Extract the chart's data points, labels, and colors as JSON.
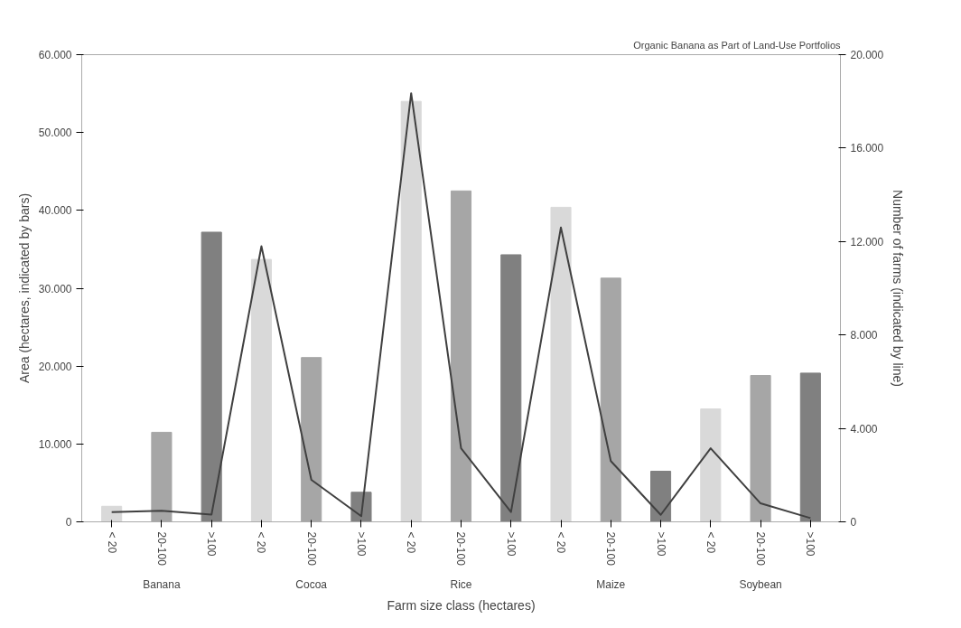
{
  "chart_data": {
    "type": "bar",
    "title": "Organic Banana as Part of Land-Use Portfolios",
    "xlabel": "Farm size class (hectares)",
    "ylabel": "Area (hectares, indicated by bars)",
    "y2label": "Number of farms (indicated by line)",
    "categories": [
      "< 20",
      "20-100",
      ">100",
      "< 20",
      "20-100",
      ">100",
      "< 20",
      "20-100",
      ">100",
      "< 20",
      "20-100",
      ">100",
      "< 20",
      "20-100",
      ">100"
    ],
    "annotations": [
      "Banana",
      "Cocoa",
      "Rice",
      "Maize",
      "Soybean"
    ],
    "series": [
      {
        "colors": [
          "#d9d9d9",
          "#a6a6a6",
          "#808080",
          "#d9d9d9",
          "#a6a6a6",
          "#808080",
          "#d9d9d9",
          "#a6a6a6",
          "#808080",
          "#d9d9d9",
          "#a6a6a6",
          "#808080",
          "#d9d9d9",
          "#a6a6a6",
          "#808080"
        ],
        "values": [
          2000,
          11500,
          37200,
          33700,
          21100,
          3800,
          54000,
          42500,
          34300,
          40400,
          31300,
          6500,
          14500,
          18800,
          19100
        ]
      },
      {
        "type": "line",
        "axis": "y2",
        "color": "#404040",
        "values": [
          420,
          470,
          310,
          11800,
          1800,
          240,
          18350,
          3150,
          420,
          12600,
          2600,
          300,
          3150,
          790,
          160
        ]
      }
    ],
    "ylim": [
      0,
      60000
    ],
    "yticks": [
      0,
      {
        "value": 10000,
        "label": "10.000"
      },
      {
        "value": 20000,
        "label": "20.000"
      },
      {
        "value": 30000,
        "label": "30.000"
      },
      {
        "value": 40000,
        "label": "40.000"
      },
      {
        "value": 50000,
        "label": "50.000"
      },
      {
        "value": 60000,
        "label": "60.000"
      }
    ],
    "y2lim": [
      0,
      20000
    ],
    "y2ticks": [
      0,
      {
        "value": 4000,
        "label": "4.000"
      },
      {
        "value": 8000,
        "label": "8.000"
      },
      {
        "value": 12000,
        "label": "12.000"
      },
      {
        "value": 16000,
        "label": "16.000"
      },
      {
        "value": 20000,
        "label": "20.000"
      }
    ],
    "grid": false,
    "marker": "none",
    "line_style": "solid"
  }
}
